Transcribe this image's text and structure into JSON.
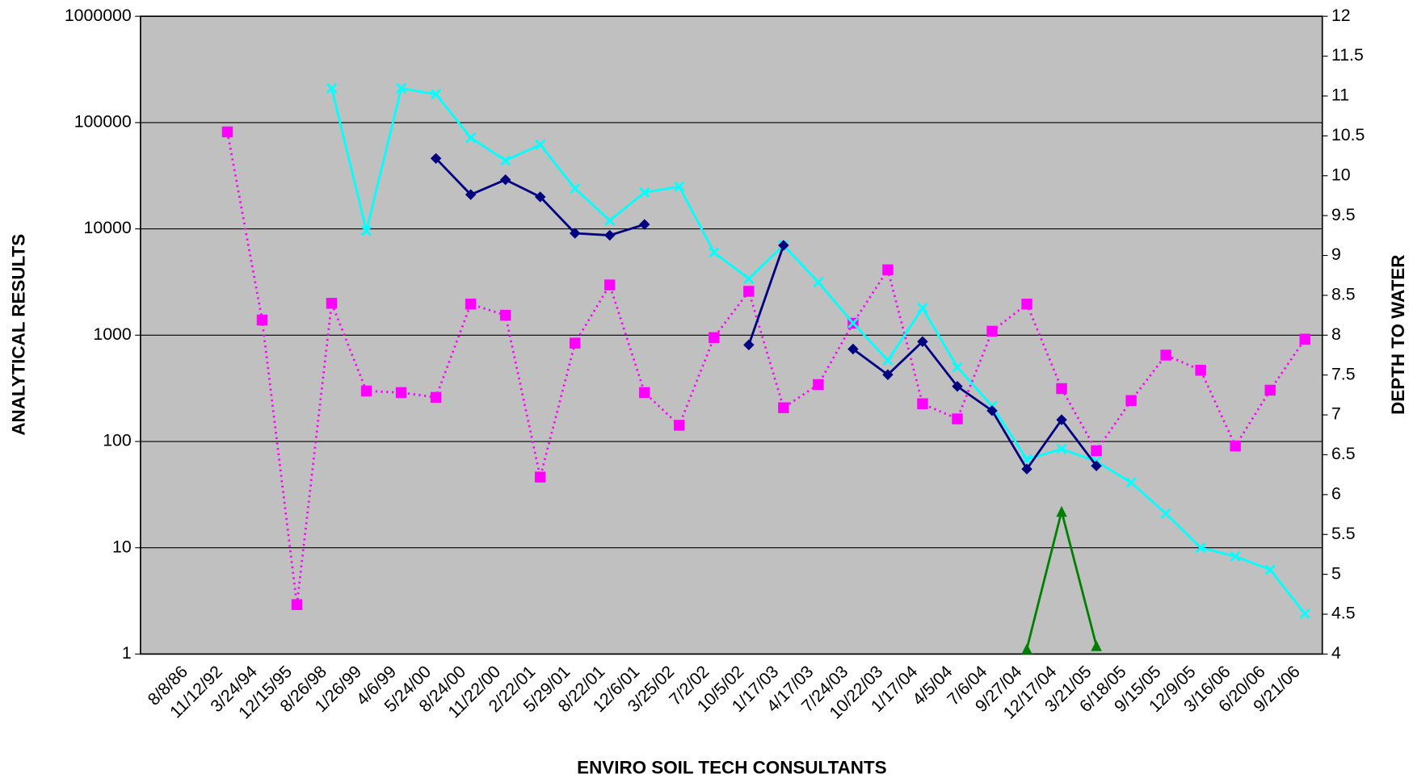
{
  "chart_data": {
    "type": "line",
    "x_label": "ENVIRO SOIL TECH CONSULTANTS",
    "y_label": "ANALYTICAL RESULTS",
    "y2_label": "DEPTH TO WATER",
    "categories": [
      null,
      "8/8/86",
      "11/12/92",
      "3/24/94",
      "12/15/95",
      "8/26/98",
      "1/26/99",
      "4/6/99",
      "5/24/00",
      "8/24/00",
      "11/22/00",
      "2/22/01",
      "5/29/01",
      "8/22/01",
      "12/6/01",
      "3/25/02",
      "7/2/02",
      "10/5/02",
      "1/17/03",
      "4/17/03",
      "7/24/03",
      "10/22/03",
      "1/17/04",
      "4/5/04",
      "7/6/04",
      "9/27/04",
      "12/17/04",
      "3/21/05",
      "6/18/05",
      "9/15/05",
      "12/9/05",
      "3/16/06",
      "6/20/06",
      "9/21/06"
    ],
    "ylog": true,
    "ylim": [
      1,
      1000000
    ],
    "yticks": [
      1,
      10,
      100,
      1000,
      10000,
      100000,
      1000000
    ],
    "y2lim": [
      4,
      12
    ],
    "y2ticks": [
      4,
      4.5,
      5,
      5.5,
      6,
      6.5,
      7,
      7.5,
      8,
      8.5,
      9,
      9.5,
      10,
      10.5,
      11,
      11.5,
      12
    ],
    "grid": true,
    "series": [
      {
        "color": "#ff00ff",
        "axis": "y2",
        "marker": "square",
        "dash": "dotted",
        "values": [
          null,
          null,
          10.55,
          8.19,
          4.62,
          8.4,
          7.3,
          7.28,
          7.22,
          8.39,
          8.25,
          6.22,
          7.9,
          8.63,
          7.28,
          6.87,
          7.97,
          8.55,
          7.09,
          7.38,
          8.15,
          8.82,
          7.14,
          6.95,
          8.05,
          8.39,
          7.33,
          6.55,
          7.18,
          7.75,
          7.56,
          6.61,
          7.31,
          7.95
        ]
      },
      {
        "color": "#00ffff",
        "marker": "x",
        "values": [
          null,
          null,
          null,
          null,
          null,
          210000,
          9600,
          210000,
          185000,
          72000,
          44000,
          62000,
          24000,
          12000,
          22000,
          25000,
          6000,
          3400,
          7000,
          3150,
          1300,
          580,
          1800,
          500,
          215,
          68,
          85,
          65,
          41,
          21,
          10,
          8.3,
          6.2,
          2.4
        ]
      },
      {
        "color": "#000080",
        "marker": "diamond",
        "values": [
          null,
          null,
          null,
          null,
          null,
          null,
          null,
          null,
          46000,
          21000,
          29000,
          20000,
          9100,
          8700,
          11000,
          null,
          null,
          810,
          7000,
          null,
          740,
          425,
          870,
          330,
          195,
          55,
          160,
          59,
          null,
          null,
          null,
          null,
          null,
          null
        ]
      },
      {
        "color": "#008000",
        "marker": "triangle",
        "values": [
          null,
          null,
          null,
          null,
          null,
          null,
          null,
          null,
          null,
          null,
          null,
          null,
          null,
          null,
          null,
          null,
          null,
          null,
          null,
          null,
          null,
          null,
          null,
          null,
          null,
          1.12,
          22,
          1.2,
          null,
          null,
          null,
          null,
          null,
          null
        ]
      }
    ]
  }
}
